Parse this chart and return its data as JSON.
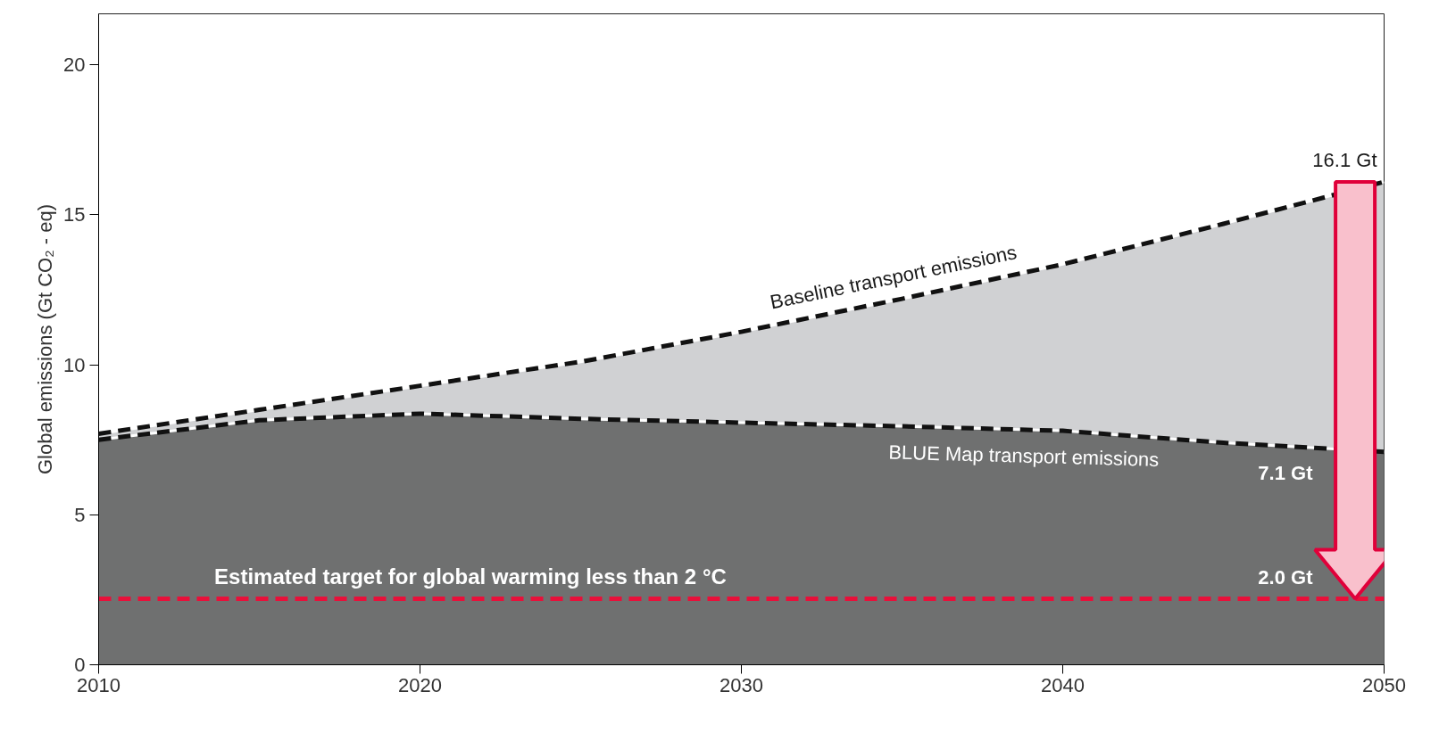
{
  "chart_data": {
    "type": "area",
    "ylabel": "Global emissions (Gt CO₂ - eq)",
    "x": [
      2010,
      2015,
      2020,
      2025,
      2030,
      2035,
      2040,
      2045,
      2050
    ],
    "series": [
      {
        "name": "Baseline transport emissions",
        "color": "#d0d1d3",
        "values": [
          7.7,
          8.5,
          9.3,
          10.1,
          11.1,
          12.2,
          13.35,
          14.7,
          16.1
        ]
      },
      {
        "name": "BLUE Map transport emissions",
        "color": "#6f7070",
        "values": [
          7.5,
          8.15,
          8.37,
          8.2,
          8.07,
          7.95,
          7.8,
          7.4,
          7.1
        ]
      }
    ],
    "line_style": "dashed",
    "xlim": [
      2010,
      2050
    ],
    "xticks": [
      2010,
      2020,
      2030,
      2040,
      2050
    ],
    "ylim": [
      0,
      21.7
    ],
    "yticks": [
      0,
      5,
      10,
      15,
      20
    ],
    "grid": false,
    "ref_lines": [
      {
        "axis": "y",
        "value": 2.2,
        "label": "Estimated target for global warming less than 2 °C",
        "color": "#e8103a",
        "line_style": "dashed"
      }
    ],
    "annotations": [
      {
        "text": "16.1 Gt",
        "x": 2050,
        "y": 16.1
      },
      "7.1 Gt",
      "2.0 Gt"
    ]
  }
}
